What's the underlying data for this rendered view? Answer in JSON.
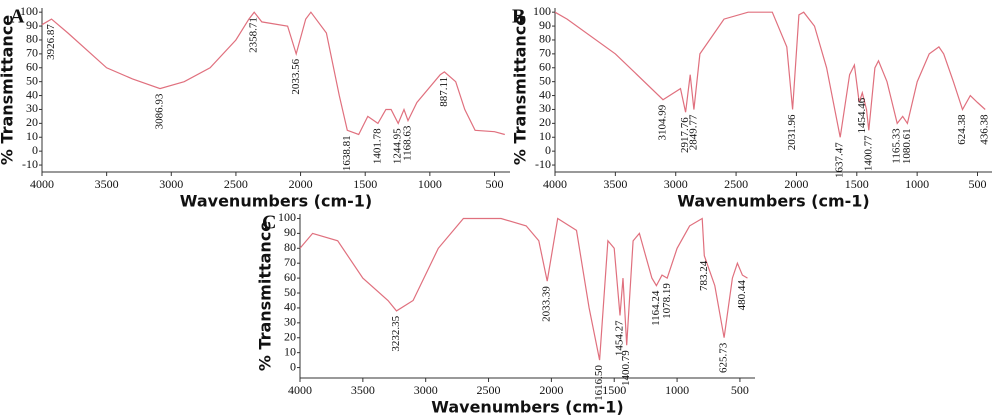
{
  "chart_data": [
    {
      "type": "line",
      "label": "A",
      "ylabel": "% Transmittance",
      "xlabel": "Wavenumbers (cm-1)",
      "color": "#e0707e",
      "xlim": [
        4000,
        380
      ],
      "ylim": [
        -15,
        103
      ],
      "xticks": [
        4000,
        3500,
        3000,
        2500,
        2000,
        1500,
        1000,
        500
      ],
      "yticks": [
        100,
        90,
        80,
        70,
        60,
        50,
        40,
        30,
        20,
        10,
        0,
        -10
      ],
      "x": [
        4000,
        3926.87,
        3800,
        3500,
        3300,
        3086.93,
        2900,
        2700,
        2500,
        2400,
        2358.71,
        2300,
        2100,
        2033.56,
        1960,
        1920,
        1800,
        1700,
        1638.81,
        1550,
        1480,
        1401.78,
        1340,
        1300,
        1244.95,
        1200,
        1168.63,
        1100,
        920,
        887.11,
        800,
        730,
        650,
        500,
        420
      ],
      "values": [
        91,
        95,
        85,
        60,
        52,
        45,
        50,
        60,
        80,
        95,
        100,
        93,
        90,
        70,
        95,
        100,
        85,
        40,
        15,
        12,
        25,
        20,
        30,
        30,
        20,
        30,
        22,
        35,
        55,
        57,
        50,
        30,
        15,
        14,
        12
      ],
      "annotations": [
        {
          "x": 3926.87,
          "label": "3926.87"
        },
        {
          "x": 3086.93,
          "label": "3086.93"
        },
        {
          "x": 2358.71,
          "label": "2358.71"
        },
        {
          "x": 2033.56,
          "label": "2033.56"
        },
        {
          "x": 1638.81,
          "label": "1638.81"
        },
        {
          "x": 1401.78,
          "label": "1401.78"
        },
        {
          "x": 1244.95,
          "label": "1244.95"
        },
        {
          "x": 1168.63,
          "label": "1168.63"
        },
        {
          "x": 887.11,
          "label": "887.11"
        }
      ]
    },
    {
      "type": "line",
      "label": "B",
      "ylabel": "% Transmittance",
      "xlabel": "Wavenumbers (cm-1)",
      "color": "#e0707e",
      "xlim": [
        4000,
        380
      ],
      "ylim": [
        -15,
        103
      ],
      "xticks": [
        4000,
        3500,
        3000,
        2500,
        2000,
        1500,
        1000,
        500
      ],
      "yticks": [
        100,
        90,
        80,
        70,
        60,
        50,
        40,
        30,
        20,
        10,
        0,
        -10
      ],
      "x": [
        4000,
        3900,
        3500,
        3104.99,
        2960,
        2917.76,
        2880,
        2849.77,
        2800,
        2600,
        2400,
        2200,
        2080,
        2031.96,
        1980,
        1940,
        1850,
        1750,
        1637.47,
        1560,
        1520,
        1480,
        1454.46,
        1420,
        1400.77,
        1350,
        1320,
        1250,
        1165.33,
        1120,
        1080.61,
        1000,
        900,
        820,
        780,
        700,
        624.38,
        560,
        500,
        436.38
      ],
      "values": [
        100,
        95,
        70,
        37,
        45,
        28,
        55,
        30,
        70,
        95,
        100,
        100,
        75,
        30,
        98,
        100,
        90,
        60,
        10,
        55,
        62,
        35,
        42,
        30,
        15,
        60,
        65,
        50,
        20,
        25,
        20,
        50,
        70,
        75,
        70,
        50,
        30,
        40,
        35,
        30
      ],
      "annotations": [
        {
          "x": 3104.99,
          "label": "3104.99"
        },
        {
          "x": 2917.76,
          "label": "2917.76"
        },
        {
          "x": 2849.77,
          "label": "2849.77"
        },
        {
          "x": 2031.96,
          "label": "2031.96"
        },
        {
          "x": 1637.47,
          "label": "1637.47"
        },
        {
          "x": 1454.46,
          "label": "1454.46"
        },
        {
          "x": 1400.77,
          "label": "1400.77"
        },
        {
          "x": 1165.33,
          "label": "1165.33"
        },
        {
          "x": 1080.61,
          "label": "1080.61"
        },
        {
          "x": 624.38,
          "label": "624.38"
        },
        {
          "x": 436.38,
          "label": "436.38"
        }
      ]
    },
    {
      "type": "line",
      "label": "C",
      "ylabel": "% Transmittance",
      "xlabel": "Wavenumbers (cm-1)",
      "color": "#e0707e",
      "xlim": [
        4000,
        380
      ],
      "ylim": [
        -7,
        103
      ],
      "xticks": [
        4000,
        3500,
        3000,
        2500,
        2000,
        1500,
        1000,
        500
      ],
      "yticks": [
        100,
        90,
        80,
        70,
        60,
        50,
        40,
        30,
        20,
        10,
        0
      ],
      "x": [
        4000,
        3900,
        3700,
        3500,
        3300,
        3232.35,
        3100,
        2900,
        2700,
        2400,
        2200,
        2100,
        2033.39,
        1950,
        1800,
        1700,
        1616.5,
        1550,
        1500,
        1454.27,
        1430,
        1400.79,
        1350,
        1300,
        1250,
        1200,
        1164.24,
        1120,
        1078.19,
        1000,
        900,
        800,
        783.24,
        700,
        625.73,
        560,
        520,
        480.44,
        440
      ],
      "values": [
        80,
        90,
        85,
        60,
        45,
        38,
        45,
        80,
        100,
        100,
        95,
        85,
        58,
        100,
        92,
        40,
        5,
        85,
        80,
        35,
        60,
        15,
        85,
        90,
        75,
        60,
        55,
        62,
        60,
        80,
        95,
        100,
        75,
        55,
        20,
        60,
        70,
        62,
        60
      ],
      "annotations": [
        {
          "x": 3232.35,
          "label": "3232.35"
        },
        {
          "x": 2033.39,
          "label": "2033.39"
        },
        {
          "x": 1616.5,
          "label": "1616.50"
        },
        {
          "x": 1454.27,
          "label": "1454.27"
        },
        {
          "x": 1400.79,
          "label": "1400.79"
        },
        {
          "x": 1164.24,
          "label": "1164.24"
        },
        {
          "x": 1078.19,
          "label": "1078.19"
        },
        {
          "x": 783.24,
          "label": "783.24"
        },
        {
          "x": 625.73,
          "label": "625.73"
        },
        {
          "x": 480.44,
          "label": "480.44"
        }
      ]
    }
  ]
}
